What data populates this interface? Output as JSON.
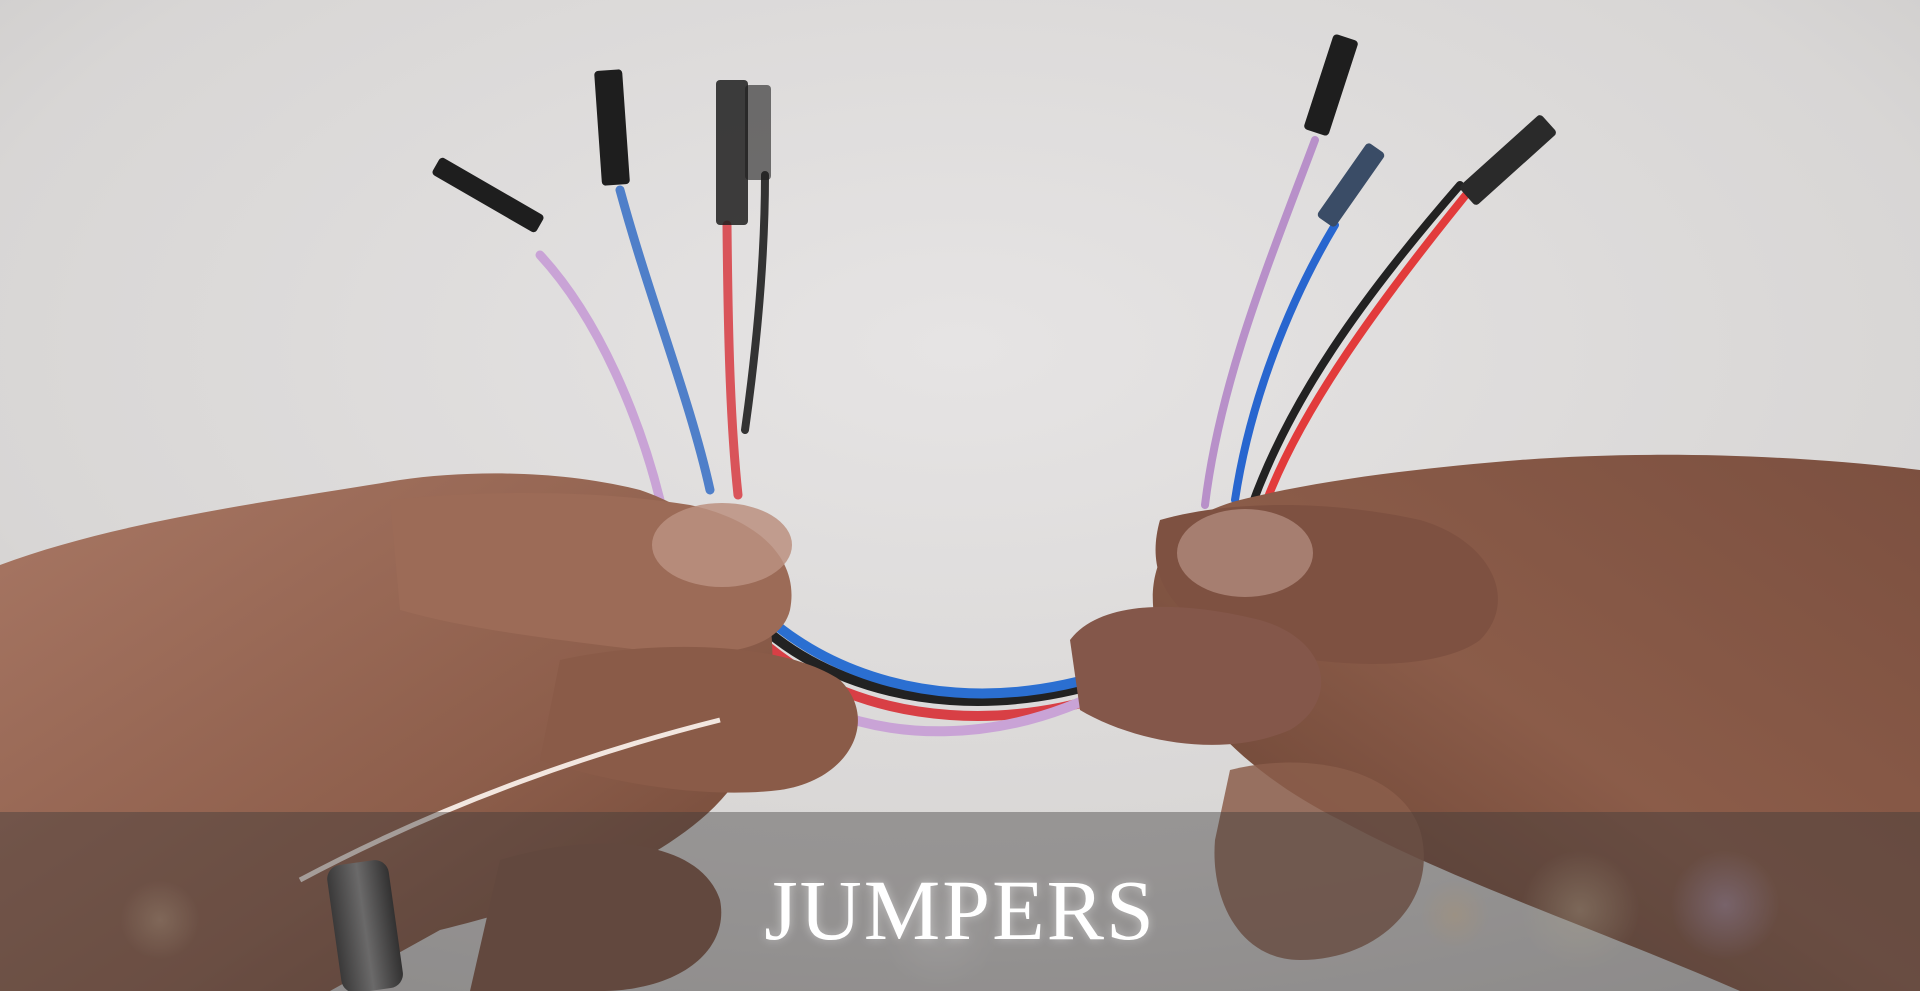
{
  "caption": {
    "text": "JUMPERS"
  },
  "colors": {
    "background": "#dad8d7",
    "skin": "#9a6b56",
    "skin_dark": "#6e4636",
    "wire_purple": "#c9a3d6",
    "wire_blue": "#2b6fd1",
    "wire_red": "#e23b3b",
    "wire_black": "#222222",
    "connector": "#1c1c1c",
    "caption_text": "#ffffff"
  }
}
